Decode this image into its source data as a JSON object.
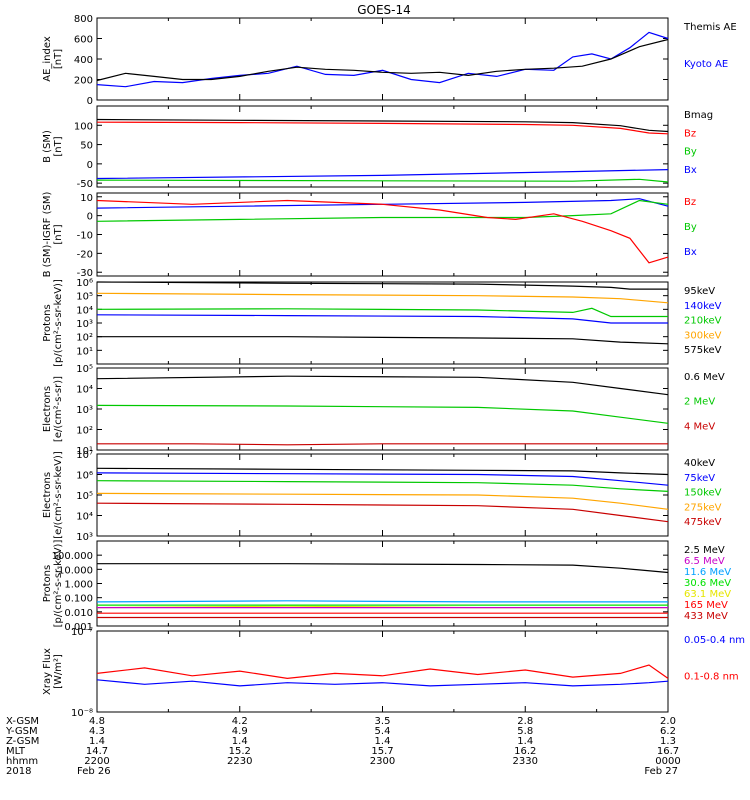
{
  "title": "GOES-14",
  "colors": {
    "black": "#000000",
    "blue": "#0000ff",
    "green": "#00c800",
    "red": "#ff0000",
    "darkred": "#c80000",
    "orange": "#ffa500",
    "lightgreen": "#00e100",
    "yellow": "#e6e600",
    "cyan": "#00a0ff",
    "purple": "#c800c8"
  },
  "chart_data": [
    {
      "id": "ae",
      "type": "line",
      "ylabel": "AE_index\n[nT]",
      "yscale": "linear",
      "ylim": [
        0,
        800
      ],
      "yticks": [
        "0",
        "200",
        "400",
        "600",
        "800"
      ],
      "series": [
        {
          "name": "Kyoto AE",
          "color": "blue",
          "x": [
            0,
            6,
            12,
            18,
            24,
            30,
            36,
            42,
            48,
            54,
            60,
            66,
            72,
            78,
            84,
            90,
            96,
            100,
            104,
            108,
            112,
            116,
            120
          ],
          "values": [
            150,
            130,
            180,
            170,
            210,
            240,
            260,
            330,
            250,
            240,
            290,
            200,
            170,
            260,
            230,
            300,
            290,
            420,
            450,
            400,
            510,
            660,
            600
          ]
        },
        {
          "name": "Themis AE",
          "color": "black",
          "x": [
            0,
            6,
            12,
            18,
            24,
            30,
            36,
            42,
            48,
            54,
            60,
            66,
            72,
            78,
            84,
            90,
            96,
            102,
            108,
            114,
            120
          ],
          "values": [
            190,
            260,
            230,
            200,
            200,
            230,
            280,
            320,
            300,
            290,
            270,
            260,
            270,
            240,
            280,
            300,
            310,
            330,
            400,
            520,
            590
          ]
        }
      ]
    },
    {
      "id": "bsm",
      "type": "line",
      "ylabel": "B (SM)\n[nT]",
      "yscale": "linear",
      "ylim": [
        -60,
        150
      ],
      "yticks": [
        "-50",
        "0",
        "50",
        "100"
      ],
      "series": [
        {
          "name": "Bx",
          "color": "blue",
          "x": [
            0,
            60,
            100,
            120
          ],
          "values": [
            -38,
            -30,
            -20,
            -15
          ]
        },
        {
          "name": "By",
          "color": "green",
          "x": [
            0,
            60,
            100,
            114,
            120
          ],
          "values": [
            -42,
            -44,
            -45,
            -40,
            -47
          ]
        },
        {
          "name": "Bz",
          "color": "red",
          "x": [
            0,
            30,
            60,
            90,
            100,
            110,
            116,
            120
          ],
          "values": [
            108,
            107,
            105,
            102,
            100,
            92,
            80,
            78
          ]
        },
        {
          "name": "Bmag",
          "color": "black",
          "x": [
            0,
            30,
            60,
            90,
            100,
            110,
            116,
            120
          ],
          "values": [
            115,
            113,
            111,
            109,
            107,
            99,
            87,
            84
          ]
        }
      ]
    },
    {
      "id": "bigrf",
      "type": "line",
      "ylabel": "B (SM)-IGRF (SM)\n[nT]",
      "yscale": "linear",
      "ylim": [
        -32,
        12
      ],
      "yticks": [
        "-30",
        "-20",
        "-10",
        "0",
        "10"
      ],
      "series": [
        {
          "name": "Bx",
          "color": "blue",
          "x": [
            0,
            30,
            60,
            90,
            108,
            114,
            120
          ],
          "values": [
            4,
            5,
            6,
            7,
            8,
            9,
            5
          ]
        },
        {
          "name": "By",
          "color": "green",
          "x": [
            0,
            30,
            60,
            90,
            100,
            108,
            114,
            120
          ],
          "values": [
            -3,
            -2,
            -1,
            -1,
            0,
            1,
            8,
            6
          ]
        },
        {
          "name": "Bz",
          "color": "red",
          "x": [
            0,
            20,
            40,
            60,
            72,
            82,
            88,
            96,
            102,
            108,
            112,
            116,
            120
          ],
          "values": [
            8,
            6,
            8,
            6,
            3,
            -1,
            -2,
            1,
            -3,
            -8,
            -12,
            -25,
            -22
          ]
        }
      ]
    },
    {
      "id": "protons",
      "type": "line",
      "ylabel": "Protons\n[p/(cm²-s-sr-keV)]",
      "yscale": "log",
      "ylim": [
        1,
        1000000
      ],
      "yticks": [
        "10¹",
        "10²",
        "10³",
        "10⁴",
        "10⁵",
        "10⁶"
      ],
      "series": [
        {
          "name": "575keV",
          "color": "black",
          "x": [
            0,
            40,
            80,
            100,
            108,
            112,
            120
          ],
          "values": [
            1000000,
            800000,
            700000,
            500000,
            400000,
            300000,
            300000
          ]
        },
        {
          "name": "300keV",
          "color": "orange",
          "x": [
            0,
            40,
            80,
            100,
            110,
            120
          ],
          "values": [
            150000,
            120000,
            100000,
            80000,
            60000,
            30000
          ]
        },
        {
          "name": "210keV",
          "color": "green",
          "x": [
            0,
            40,
            80,
            100,
            104,
            108,
            120
          ],
          "values": [
            10000,
            11000,
            9000,
            6000,
            12000,
            3000,
            3000
          ]
        },
        {
          "name": "140keV",
          "color": "blue",
          "x": [
            0,
            40,
            80,
            100,
            108,
            120
          ],
          "values": [
            4000,
            3500,
            3000,
            2000,
            1000,
            1000
          ]
        },
        {
          "name": "95keV",
          "color": "black",
          "x": [
            0,
            40,
            80,
            100,
            110,
            120
          ],
          "values": [
            100,
            100,
            80,
            70,
            40,
            30
          ]
        }
      ]
    },
    {
      "id": "electrons_mev",
      "type": "line",
      "ylabel": "Electrons\n[e/(cm²-s-sr)]",
      "yscale": "log",
      "ylim": [
        10,
        100000
      ],
      "yticks": [
        "10¹",
        "10²",
        "10³",
        "10⁴",
        "10⁵"
      ],
      "series": [
        {
          "name": "4 MeV",
          "color": "darkred",
          "x": [
            0,
            20,
            40,
            60,
            80,
            100,
            120
          ],
          "values": [
            20,
            20,
            18,
            20,
            20,
            20,
            20
          ]
        },
        {
          "name": "2 MeV",
          "color": "green",
          "x": [
            0,
            40,
            80,
            100,
            110,
            120
          ],
          "values": [
            1500,
            1400,
            1200,
            800,
            400,
            200
          ]
        },
        {
          "name": "0.6 MeV",
          "color": "black",
          "x": [
            0,
            40,
            80,
            100,
            110,
            120
          ],
          "values": [
            30000,
            40000,
            35000,
            20000,
            10000,
            5000
          ]
        }
      ]
    },
    {
      "id": "electrons_kev",
      "type": "line",
      "ylabel": "Electrons\n[e/(cm²-s-sr-keV)]",
      "yscale": "log",
      "ylim": [
        1000,
        10000000
      ],
      "yticks": [
        "10³",
        "10⁴",
        "10⁵",
        "10⁶",
        "10⁷"
      ],
      "series": [
        {
          "name": "475keV",
          "color": "darkred",
          "x": [
            0,
            40,
            80,
            100,
            110,
            120
          ],
          "values": [
            40000,
            35000,
            30000,
            20000,
            10000,
            5000
          ]
        },
        {
          "name": "275keV",
          "color": "orange",
          "x": [
            0,
            40,
            80,
            100,
            110,
            120
          ],
          "values": [
            120000,
            110000,
            100000,
            70000,
            40000,
            20000
          ]
        },
        {
          "name": "150keV",
          "color": "green",
          "x": [
            0,
            40,
            80,
            100,
            110,
            120
          ],
          "values": [
            500000,
            450000,
            400000,
            300000,
            200000,
            150000
          ]
        },
        {
          "name": "75keV",
          "color": "blue",
          "x": [
            0,
            40,
            80,
            100,
            110,
            120
          ],
          "values": [
            1200000,
            1100000,
            1000000,
            800000,
            500000,
            300000
          ]
        },
        {
          "name": "40keV",
          "color": "black",
          "x": [
            0,
            40,
            80,
            100,
            110,
            120
          ],
          "values": [
            2000000,
            1800000,
            1600000,
            1500000,
            1200000,
            1000000
          ]
        }
      ]
    },
    {
      "id": "protons_mev",
      "type": "line",
      "ylabel": "Protons\n[p/(cm²-s-sr-keV)]",
      "yscale": "log",
      "ylim": [
        0.001,
        1000
      ],
      "yticks": [
        "0.001",
        "0.010",
        "0.100",
        "1.000",
        "10.000",
        "100.000"
      ],
      "series": [
        {
          "name": "433 MeV",
          "color": "darkred",
          "x": [
            0,
            40,
            80,
            120
          ],
          "values": [
            0.004,
            0.004,
            0.004,
            0.004
          ]
        },
        {
          "name": "165 MeV",
          "color": "red",
          "x": [
            0,
            40,
            80,
            120
          ],
          "values": [
            0.008,
            0.008,
            0.008,
            0.008
          ]
        },
        {
          "name": "63.1 MeV",
          "color": "yellow",
          "x": [
            0,
            40,
            80,
            120
          ],
          "values": [
            0.02,
            0.025,
            0.02,
            0.02
          ]
        },
        {
          "name": "30.6 MeV",
          "color": "lightgreen",
          "x": [
            0,
            40,
            80,
            120
          ],
          "values": [
            0.03,
            0.03,
            0.03,
            0.03
          ]
        },
        {
          "name": "11.6 MeV",
          "color": "cyan",
          "x": [
            0,
            40,
            80,
            120
          ],
          "values": [
            0.05,
            0.06,
            0.05,
            0.05
          ]
        },
        {
          "name": "6.5 MeV",
          "color": "purple",
          "x": [
            0,
            40,
            80,
            120
          ],
          "values": [
            0.02,
            0.02,
            0.02,
            0.02
          ]
        },
        {
          "name": "2.5 MeV",
          "color": "black",
          "x": [
            0,
            40,
            80,
            100,
            110,
            120
          ],
          "values": [
            25,
            25,
            22,
            20,
            12,
            6
          ]
        }
      ]
    },
    {
      "id": "xray",
      "type": "line",
      "ylabel": "Xray Flux\n[W/m²]",
      "yscale": "log",
      "ylim": [
        1e-08,
        1e-07
      ],
      "yticks": [
        "10⁻⁸",
        "10⁻⁷"
      ],
      "series": [
        {
          "name": "0.1-0.8 nm",
          "color": "red",
          "x": [
            0,
            10,
            20,
            30,
            40,
            50,
            60,
            70,
            80,
            90,
            100,
            110,
            116,
            120
          ],
          "values": [
            3e-08,
            3.5e-08,
            2.8e-08,
            3.2e-08,
            2.6e-08,
            3e-08,
            2.8e-08,
            3.4e-08,
            2.9e-08,
            3.3e-08,
            2.7e-08,
            3e-08,
            3.8e-08,
            2.6e-08
          ]
        },
        {
          "name": "0.05-0.4 nm",
          "color": "blue",
          "x": [
            0,
            10,
            20,
            30,
            40,
            50,
            60,
            70,
            80,
            90,
            100,
            110,
            116,
            120
          ],
          "values": [
            2.5e-08,
            2.2e-08,
            2.4e-08,
            2.1e-08,
            2.3e-08,
            2.2e-08,
            2.3e-08,
            2.1e-08,
            2.2e-08,
            2.3e-08,
            2.1e-08,
            2.2e-08,
            2.3e-08,
            2.4e-08
          ]
        }
      ]
    }
  ],
  "x_axis": {
    "row_labels": [
      "X-GSM",
      "Y-GSM",
      "Z-GSM",
      "MLT",
      "hhmm",
      "2018"
    ],
    "columns": [
      {
        "x": 0,
        "values": [
          "4.8",
          "4.3",
          "1.4",
          "14.7",
          "2200",
          "Feb 26"
        ]
      },
      {
        "x": 30,
        "values": [
          "4.2",
          "4.9",
          "1.4",
          "15.2",
          "2230",
          ""
        ]
      },
      {
        "x": 60,
        "values": [
          "3.5",
          "5.4",
          "1.4",
          "15.7",
          "2300",
          ""
        ]
      },
      {
        "x": 90,
        "values": [
          "2.8",
          "5.8",
          "1.4",
          "16.2",
          "2330",
          ""
        ]
      },
      {
        "x": 120,
        "values": [
          "2.0",
          "6.2",
          "1.3",
          "16.7",
          "0000",
          "Feb 27"
        ]
      }
    ]
  }
}
